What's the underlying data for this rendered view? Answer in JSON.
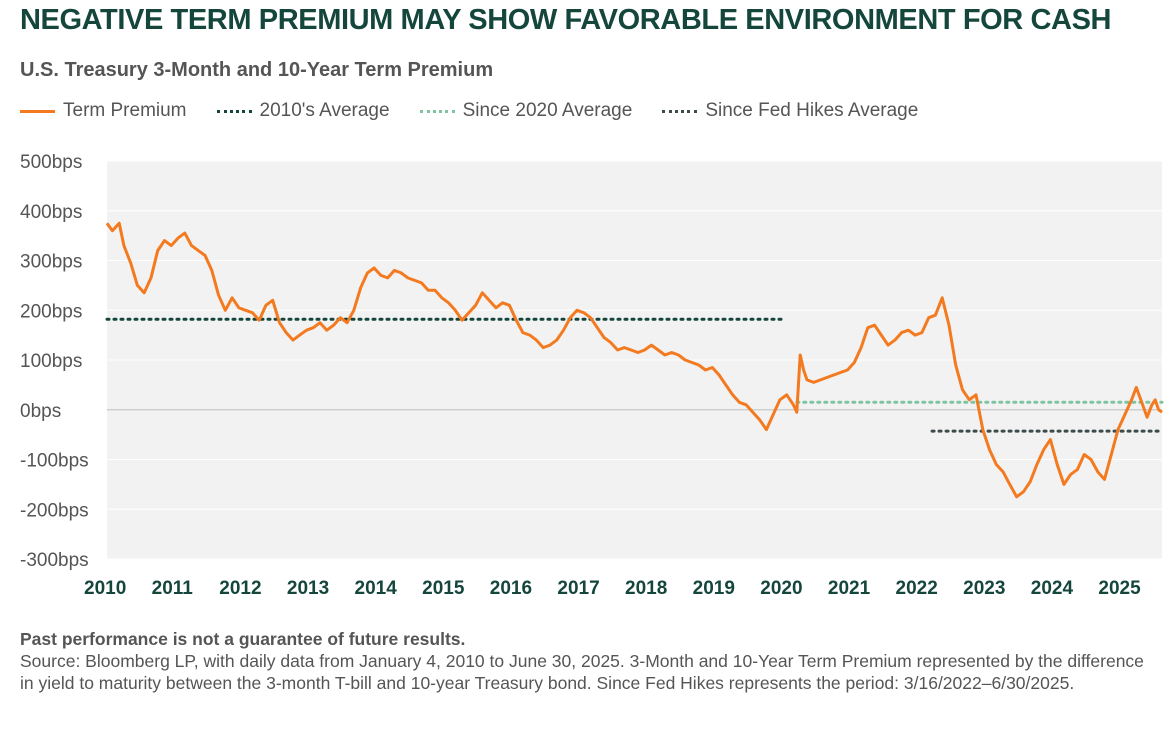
{
  "title": "NEGATIVE TERM PREMIUM MAY SHOW FAVORABLE ENVIRONMENT FOR CASH",
  "subtitle": "U.S. Treasury 3-Month and 10-Year Term Premium",
  "legend": [
    {
      "label": "Term Premium",
      "style": "solid",
      "color": "#f47a20"
    },
    {
      "label": "2010's Average",
      "style": "dotted",
      "color": "#14463c"
    },
    {
      "label": "Since 2020 Average",
      "style": "dotted",
      "color": "#7fc4a1"
    },
    {
      "label": "Since Fed Hikes Average",
      "style": "dotted",
      "color": "#3d4b4b"
    }
  ],
  "colors": {
    "title": "#14463c",
    "series": "#f47a20",
    "plot_bg": "#f2f2f2",
    "avg_2010s": "#14463c",
    "avg_2020": "#7fc4a1",
    "avg_hikes": "#3d4b4b"
  },
  "chart_data": {
    "type": "line",
    "title": "U.S. Treasury 3-Month and 10-Year Term Premium",
    "xlabel": "",
    "ylabel": "",
    "ylim": [
      -300,
      500
    ],
    "xlim": [
      2010.0,
      2025.6
    ],
    "y_ticks": [
      500,
      400,
      300,
      200,
      100,
      0,
      -100,
      -200,
      -300
    ],
    "y_tick_labels": [
      "500bps",
      "400bps",
      "300bps",
      "200bps",
      "100bps",
      "0bps",
      "-100bps",
      "-200bps",
      "-300bps"
    ],
    "x_ticks": [
      2010,
      2011,
      2012,
      2013,
      2014,
      2015,
      2016,
      2017,
      2018,
      2019,
      2020,
      2021,
      2022,
      2023,
      2024,
      2025
    ],
    "x_tick_labels": [
      "2010",
      "2011",
      "2012",
      "2013",
      "2014",
      "2015",
      "2016",
      "2017",
      "2018",
      "2019",
      "2020",
      "2021",
      "2022",
      "2023",
      "2024",
      "2025"
    ],
    "series": [
      {
        "name": "Term Premium",
        "points": [
          [
            2010.0,
            375
          ],
          [
            2010.08,
            360
          ],
          [
            2010.18,
            375
          ],
          [
            2010.25,
            330
          ],
          [
            2010.35,
            295
          ],
          [
            2010.45,
            250
          ],
          [
            2010.55,
            235
          ],
          [
            2010.65,
            265
          ],
          [
            2010.75,
            320
          ],
          [
            2010.85,
            340
          ],
          [
            2010.95,
            330
          ],
          [
            2011.05,
            345
          ],
          [
            2011.15,
            355
          ],
          [
            2011.25,
            330
          ],
          [
            2011.35,
            320
          ],
          [
            2011.45,
            310
          ],
          [
            2011.55,
            280
          ],
          [
            2011.65,
            230
          ],
          [
            2011.75,
            200
          ],
          [
            2011.85,
            225
          ],
          [
            2011.95,
            205
          ],
          [
            2012.05,
            200
          ],
          [
            2012.15,
            195
          ],
          [
            2012.25,
            180
          ],
          [
            2012.35,
            210
          ],
          [
            2012.45,
            220
          ],
          [
            2012.55,
            175
          ],
          [
            2012.65,
            155
          ],
          [
            2012.75,
            140
          ],
          [
            2012.85,
            150
          ],
          [
            2012.95,
            160
          ],
          [
            2013.05,
            165
          ],
          [
            2013.15,
            175
          ],
          [
            2013.25,
            160
          ],
          [
            2013.35,
            170
          ],
          [
            2013.45,
            185
          ],
          [
            2013.55,
            175
          ],
          [
            2013.65,
            200
          ],
          [
            2013.75,
            245
          ],
          [
            2013.85,
            275
          ],
          [
            2013.95,
            285
          ],
          [
            2014.05,
            270
          ],
          [
            2014.15,
            265
          ],
          [
            2014.25,
            280
          ],
          [
            2014.35,
            275
          ],
          [
            2014.45,
            265
          ],
          [
            2014.55,
            260
          ],
          [
            2014.65,
            255
          ],
          [
            2014.75,
            240
          ],
          [
            2014.85,
            240
          ],
          [
            2014.95,
            225
          ],
          [
            2015.05,
            215
          ],
          [
            2015.15,
            200
          ],
          [
            2015.25,
            180
          ],
          [
            2015.35,
            195
          ],
          [
            2015.45,
            210
          ],
          [
            2015.55,
            235
          ],
          [
            2015.65,
            220
          ],
          [
            2015.75,
            205
          ],
          [
            2015.85,
            215
          ],
          [
            2015.95,
            210
          ],
          [
            2016.05,
            180
          ],
          [
            2016.15,
            155
          ],
          [
            2016.25,
            150
          ],
          [
            2016.35,
            140
          ],
          [
            2016.45,
            125
          ],
          [
            2016.55,
            130
          ],
          [
            2016.65,
            140
          ],
          [
            2016.75,
            160
          ],
          [
            2016.85,
            185
          ],
          [
            2016.95,
            200
          ],
          [
            2017.05,
            195
          ],
          [
            2017.15,
            185
          ],
          [
            2017.25,
            165
          ],
          [
            2017.35,
            145
          ],
          [
            2017.45,
            135
          ],
          [
            2017.55,
            120
          ],
          [
            2017.65,
            125
          ],
          [
            2017.75,
            120
          ],
          [
            2017.85,
            115
          ],
          [
            2017.95,
            120
          ],
          [
            2018.05,
            130
          ],
          [
            2018.15,
            120
          ],
          [
            2018.25,
            110
          ],
          [
            2018.35,
            115
          ],
          [
            2018.45,
            110
          ],
          [
            2018.55,
            100
          ],
          [
            2018.65,
            95
          ],
          [
            2018.75,
            90
          ],
          [
            2018.85,
            80
          ],
          [
            2018.95,
            85
          ],
          [
            2019.05,
            70
          ],
          [
            2019.15,
            50
          ],
          [
            2019.25,
            30
          ],
          [
            2019.35,
            15
          ],
          [
            2019.45,
            10
          ],
          [
            2019.55,
            -5
          ],
          [
            2019.65,
            -20
          ],
          [
            2019.75,
            -40
          ],
          [
            2019.85,
            -10
          ],
          [
            2019.95,
            20
          ],
          [
            2020.05,
            30
          ],
          [
            2020.15,
            10
          ],
          [
            2020.2,
            -5
          ],
          [
            2020.25,
            110
          ],
          [
            2020.3,
            80
          ],
          [
            2020.35,
            60
          ],
          [
            2020.45,
            55
          ],
          [
            2020.55,
            60
          ],
          [
            2020.65,
            65
          ],
          [
            2020.75,
            70
          ],
          [
            2020.85,
            75
          ],
          [
            2020.95,
            80
          ],
          [
            2021.05,
            95
          ],
          [
            2021.15,
            125
          ],
          [
            2021.25,
            165
          ],
          [
            2021.35,
            170
          ],
          [
            2021.45,
            150
          ],
          [
            2021.55,
            130
          ],
          [
            2021.65,
            140
          ],
          [
            2021.75,
            155
          ],
          [
            2021.85,
            160
          ],
          [
            2021.95,
            150
          ],
          [
            2022.05,
            155
          ],
          [
            2022.15,
            185
          ],
          [
            2022.25,
            190
          ],
          [
            2022.35,
            225
          ],
          [
            2022.45,
            170
          ],
          [
            2022.55,
            90
          ],
          [
            2022.65,
            40
          ],
          [
            2022.75,
            20
          ],
          [
            2022.85,
            30
          ],
          [
            2022.95,
            -40
          ],
          [
            2023.05,
            -80
          ],
          [
            2023.15,
            -110
          ],
          [
            2023.25,
            -125
          ],
          [
            2023.35,
            -150
          ],
          [
            2023.45,
            -175
          ],
          [
            2023.55,
            -165
          ],
          [
            2023.65,
            -145
          ],
          [
            2023.75,
            -110
          ],
          [
            2023.85,
            -80
          ],
          [
            2023.95,
            -60
          ],
          [
            2024.05,
            -110
          ],
          [
            2024.15,
            -150
          ],
          [
            2024.25,
            -130
          ],
          [
            2024.35,
            -120
          ],
          [
            2024.45,
            -90
          ],
          [
            2024.55,
            -100
          ],
          [
            2024.65,
            -125
          ],
          [
            2024.75,
            -140
          ],
          [
            2024.85,
            -90
          ],
          [
            2024.95,
            -40
          ],
          [
            2025.05,
            -10
          ],
          [
            2025.15,
            20
          ],
          [
            2025.22,
            45
          ],
          [
            2025.3,
            15
          ],
          [
            2025.38,
            -15
          ],
          [
            2025.45,
            10
          ],
          [
            2025.5,
            20
          ],
          [
            2025.55,
            0
          ],
          [
            2025.6,
            -5
          ]
        ]
      }
    ],
    "reference_lines": [
      {
        "name": "2010's Average",
        "value": 182,
        "x_start": 2010.0,
        "x_end": 2020.0
      },
      {
        "name": "Since 2020 Average",
        "value": 15,
        "x_start": 2020.2,
        "x_end": 2025.6
      },
      {
        "name": "Since Fed Hikes Average",
        "value": -43,
        "x_start": 2022.2,
        "x_end": 2025.6
      }
    ]
  },
  "footer": {
    "disclaimer": "Past performance is not a guarantee of future results.",
    "source": "Source: Bloomberg LP, with daily data from January 4, 2010 to June 30, 2025. 3-Month and 10-Year Term Premium represented by the difference in yield to maturity between the 3-month T-bill and 10-year Treasury bond. Since Fed Hikes represents the period: 3/16/2022–6/30/2025."
  }
}
